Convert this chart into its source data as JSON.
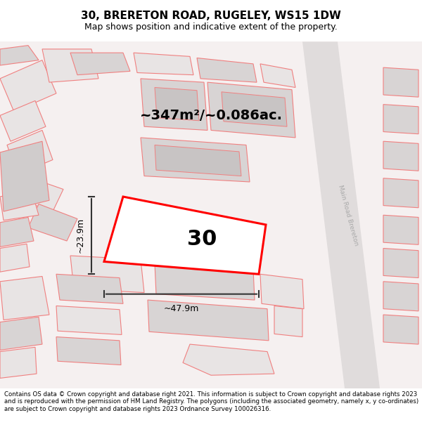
{
  "title": "30, BRERETON ROAD, RUGELEY, WS15 1DW",
  "subtitle": "Map shows position and indicative extent of the property.",
  "area_text": "~347m²/~0.086ac.",
  "number_label": "30",
  "dim_width": "~47.9m",
  "dim_height": "~23.9m",
  "road_label": "Main Road Brereton",
  "footer_text": "Contains OS data © Crown copyright and database right 2021. This information is subject to Crown copyright and database rights 2023 and is reproduced with the permission of HM Land Registry. The polygons (including the associated geometry, namely x, y co-ordinates) are subject to Crown copyright and database rights 2023 Ordnance Survey 100026316.",
  "bg_color": "#f5f0f0",
  "map_bg": "#f0eeee",
  "title_color": "#000000",
  "footer_color": "#000000",
  "plot_color": "#ff0000",
  "dim_line_color": "#333333",
  "road_color": "#cccccc",
  "building_outline": "#f08080",
  "building_fill": "#e8e0e0",
  "gray_building_fill": "#d0cece",
  "footer_bg": "#ffffff"
}
